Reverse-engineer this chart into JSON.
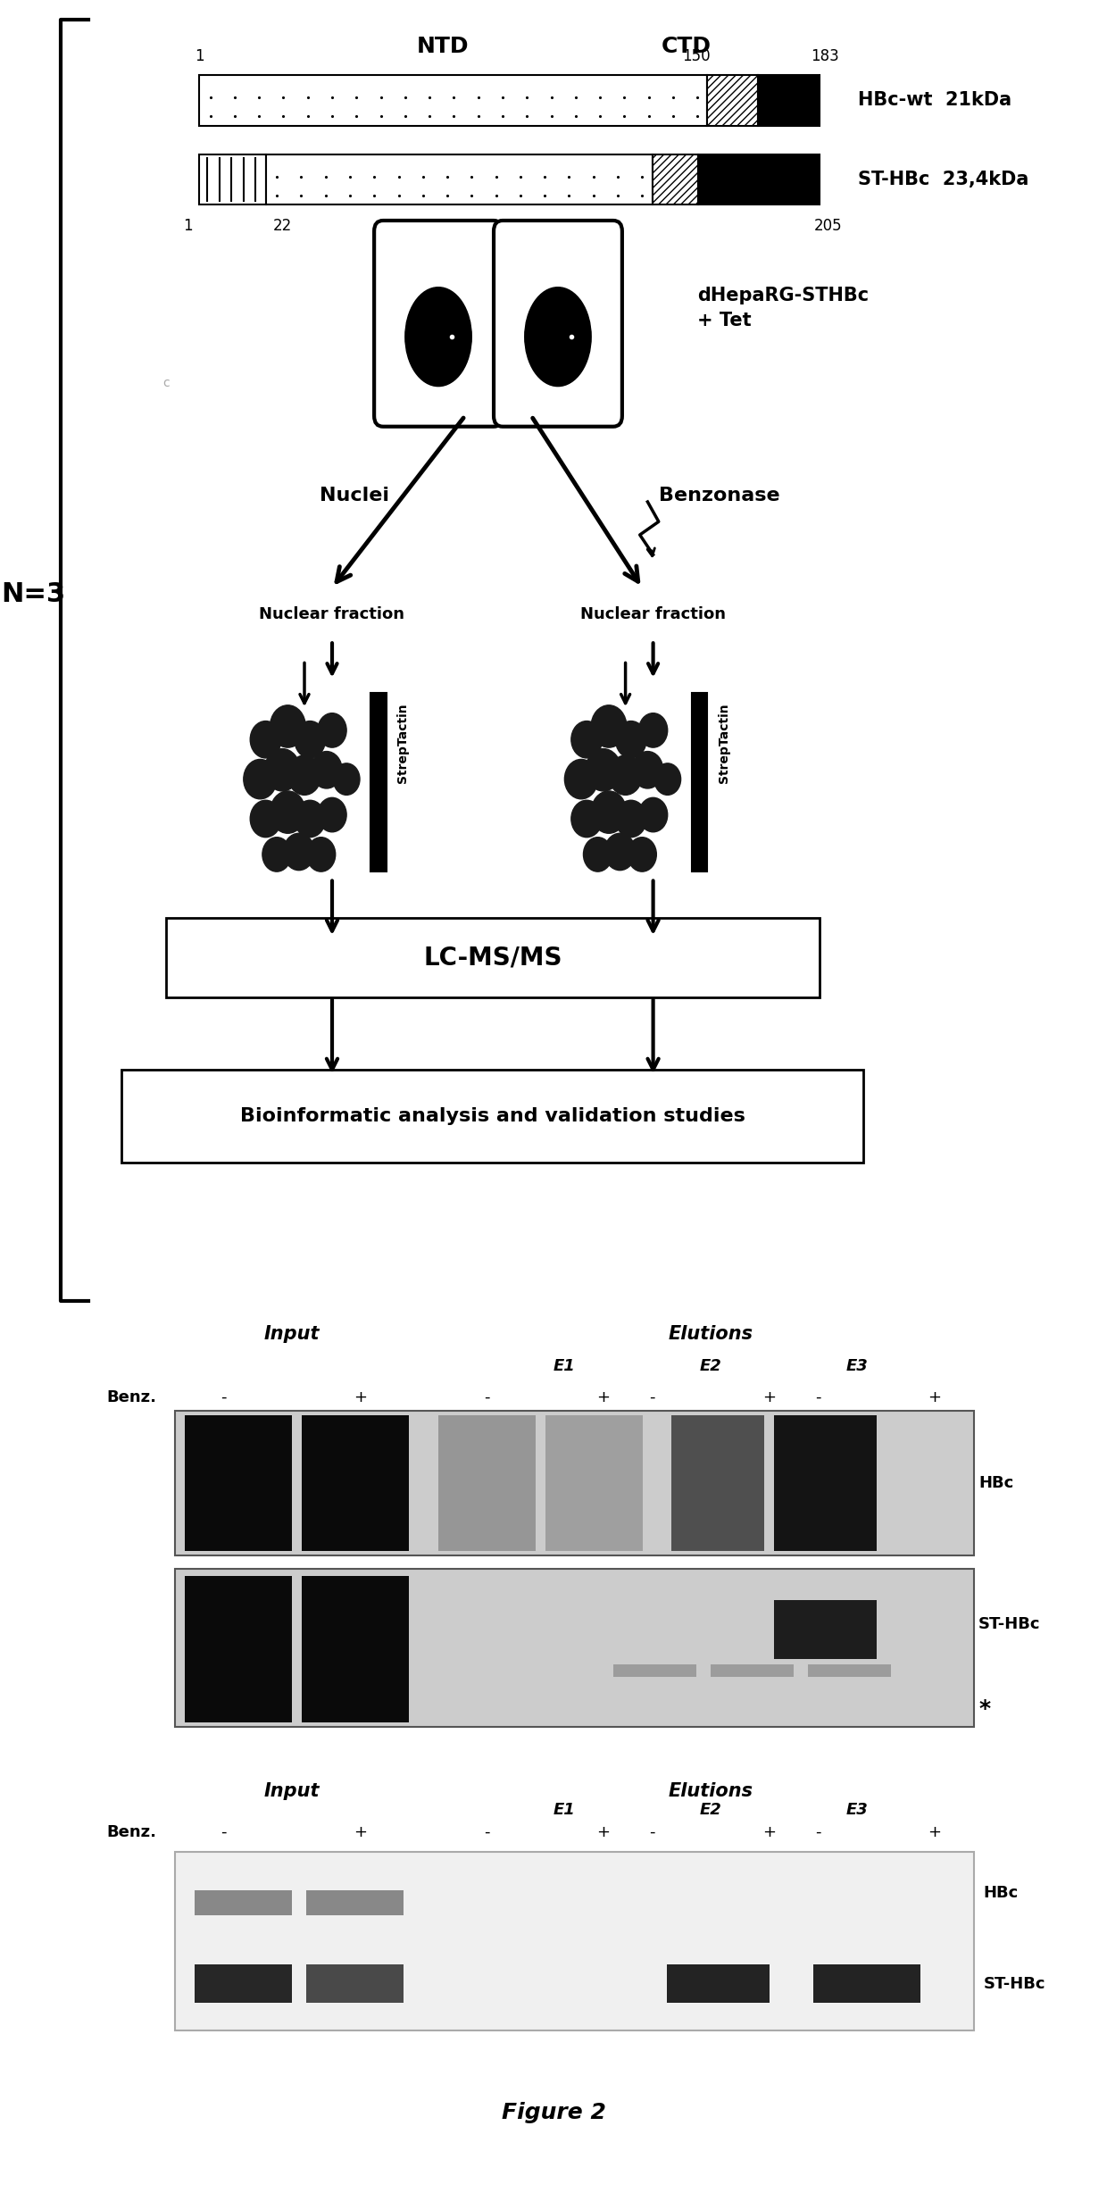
{
  "fig_width": 12.4,
  "fig_height": 24.65,
  "bg_color": "#ffffff",
  "title": "Figure 2",
  "panel1": {
    "NTD_label": "NTD",
    "CTD_label": "CTD",
    "HBc_label": "HBc-wt  21kDa",
    "STHBc_label": "ST-HBc  23,4kDa",
    "bar1_numbers": [
      "1",
      "150",
      "183"
    ],
    "bar2_numbers": [
      "1",
      "22",
      "205"
    ],
    "cell_label": "dHepaRG-STHBc\n+ Tet",
    "N_label": "N=3",
    "nuclei_label": "Nuclei",
    "benzonase_label": "Benzonase",
    "nuclear_fraction_label": "Nuclear fraction",
    "streptactin_label": "StrepTactin",
    "lcms_label": "LC-MS/MS",
    "bioinf_label": "Bioinformatic analysis and validation studies"
  },
  "panel2": {
    "input_label": "Input",
    "elutions_label": "Elutions",
    "e1": "E1",
    "e2": "E2",
    "e3": "E3",
    "benz_label": "Benz.",
    "hbc_label": "HBc",
    "sthbc_label": "ST-HBc",
    "star_label": "*",
    "minus_plus": [
      "-",
      "+",
      "-",
      "+",
      "-",
      "+",
      "-",
      "+"
    ]
  },
  "panel3": {
    "input_label": "Input",
    "elutions_label": "Elutions",
    "e1": "E1",
    "e2": "E2",
    "e3": "E3",
    "benz_label": "Benz.",
    "hbc_label": "HBc",
    "sthbc_label": "ST-HBc",
    "minus_plus": [
      "-",
      "+",
      "-",
      "+",
      "-",
      "+",
      "-",
      "+"
    ]
  }
}
